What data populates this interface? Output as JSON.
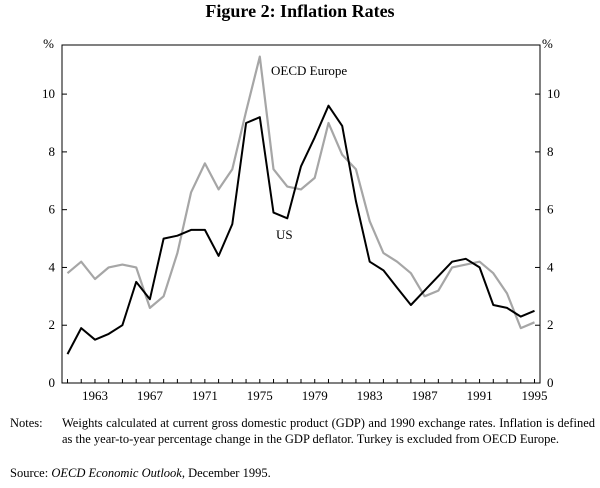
{
  "title": "Figure 2: Inflation Rates",
  "chart_data": {
    "type": "line",
    "x": [
      1961,
      1962,
      1963,
      1964,
      1965,
      1966,
      1967,
      1968,
      1969,
      1970,
      1971,
      1972,
      1973,
      1974,
      1975,
      1976,
      1977,
      1978,
      1979,
      1980,
      1981,
      1982,
      1983,
      1984,
      1985,
      1986,
      1987,
      1988,
      1989,
      1990,
      1991,
      1992,
      1993,
      1994,
      1995
    ],
    "series": [
      {
        "name": "US",
        "color": "#000000",
        "values": [
          1.0,
          1.9,
          1.5,
          1.7,
          2.0,
          3.5,
          2.9,
          5.0,
          5.1,
          5.3,
          5.3,
          4.4,
          5.5,
          9.0,
          9.2,
          5.9,
          5.7,
          7.5,
          8.5,
          9.6,
          8.9,
          6.3,
          4.2,
          3.9,
          3.3,
          2.7,
          3.2,
          3.7,
          4.2,
          4.3,
          4.0,
          2.7,
          2.6,
          2.3,
          2.5
        ]
      },
      {
        "name": "OECD Europe",
        "color": "#a6a6a6",
        "values": [
          3.8,
          4.2,
          3.6,
          4.0,
          4.1,
          4.0,
          2.6,
          3.0,
          4.5,
          6.6,
          7.6,
          6.7,
          7.4,
          9.4,
          11.3,
          7.4,
          6.8,
          6.7,
          7.1,
          9.0,
          7.9,
          7.4,
          5.6,
          4.5,
          4.2,
          3.8,
          3.0,
          3.2,
          4.0,
          4.1,
          4.2,
          3.8,
          3.1,
          1.9,
          2.1
        ]
      }
    ],
    "series_labels": [
      "OECD Europe",
      "US"
    ],
    "ylim": [
      0,
      11.7
    ],
    "xlim": [
      1960.6,
      1995.4
    ],
    "yticks": [
      0,
      2,
      4,
      6,
      8,
      10
    ],
    "xticks": [
      1963,
      1967,
      1971,
      1975,
      1979,
      1983,
      1987,
      1991,
      1995
    ],
    "ylabel_left": "%",
    "ylabel_right": "%",
    "grid": false
  },
  "notes": {
    "label": "Notes:",
    "text": "Weights calculated at current gross domestic product (GDP) and 1990 exchange rates. Inflation is defined as the year-to-year percentage change in the GDP deflator. Turkey is excluded from OECD Europe."
  },
  "source": {
    "label": "Source:",
    "publication": "OECD Economic Outlook",
    "date": ", December 1995."
  }
}
